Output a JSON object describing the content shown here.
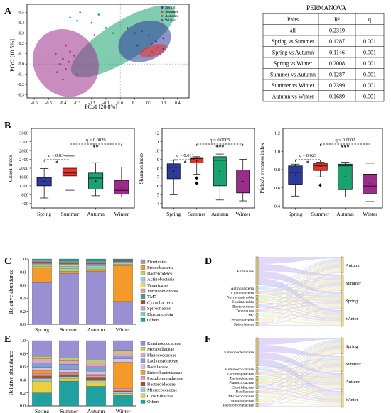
{
  "panels": {
    "A": "A",
    "B": "B",
    "C": "C",
    "D": "D",
    "E": "E",
    "F": "F"
  },
  "colors": {
    "Spring": "#2e3a9a",
    "Summer": "#e8332a",
    "Autumn": "#1aa36f",
    "Winter": "#9b2d8a"
  },
  "pcoa": {
    "xlabel": "PCo1 [20.8%]",
    "ylabel": "PCo2 [10.5%]",
    "xticks": [
      "-0.6",
      "-0.5",
      "-0.4",
      "-0.3",
      "-0.2",
      "-0.1",
      "0.0",
      "0.1",
      "0.2",
      "0.3",
      "0.4"
    ],
    "yticks": [
      "0.5",
      "0.4",
      "0.3",
      "0.2",
      "0.1",
      "0.0",
      "-0.1",
      "-0.2",
      "-0.3"
    ],
    "legend": [
      "Spring",
      "Summer",
      "Autumn",
      "Winter"
    ]
  },
  "permanova": {
    "title": "PERMANOVA",
    "headers": [
      "Pairs",
      "R²",
      "q"
    ],
    "rows": [
      [
        "all",
        "0.2319",
        "-"
      ],
      [
        "Spring vs Summer",
        "0.1287",
        "0.001"
      ],
      [
        "Spring vs Autumn",
        "0.1146",
        "0.001"
      ],
      [
        "Spring vs Winter",
        "0.2008",
        "0.001"
      ],
      [
        "Summer vs Autumn",
        "0.1287",
        "0.001"
      ],
      [
        "Summer vs Winter",
        "0.2399",
        "0.001"
      ],
      [
        "Autumn vs Winter",
        "0.1689",
        "0.001"
      ]
    ]
  },
  "chart_data": [
    {
      "type": "scatter",
      "xlabel": "PCo1 [20.8%]",
      "ylabel": "PCo2 [10.5%]",
      "xlim": [
        -0.65,
        0.48
      ],
      "ylim": [
        -0.33,
        0.58
      ],
      "series": [
        {
          "name": "Spring",
          "points": [
            [
              0.05,
              0.35
            ],
            [
              0.1,
              0.3
            ],
            [
              0.15,
              0.32
            ],
            [
              0.2,
              0.28
            ],
            [
              0.25,
              0.22
            ],
            [
              0.3,
              0.25
            ],
            [
              0.12,
              0.18
            ],
            [
              0.22,
              0.2
            ],
            [
              0.3,
              0.15
            ]
          ]
        },
        {
          "name": "Summer",
          "points": [
            [
              0.18,
              0.15
            ],
            [
              0.22,
              0.12
            ],
            [
              0.25,
              0.14
            ],
            [
              0.28,
              0.1
            ],
            [
              0.2,
              0.08
            ],
            [
              0.26,
              0.16
            ],
            [
              0.23,
              0.11
            ],
            [
              -0.18,
              0.28
            ]
          ]
        },
        {
          "name": "Autumn",
          "points": [
            [
              -0.35,
              0.45
            ],
            [
              -0.28,
              0.5
            ],
            [
              -0.2,
              0.4
            ],
            [
              -0.15,
              0.48
            ],
            [
              -0.05,
              0.3
            ],
            [
              0.0,
              0.2
            ],
            [
              0.08,
              0.15
            ],
            [
              -0.3,
              0.42
            ],
            [
              0.15,
              0.18
            ],
            [
              -0.1,
              0.35
            ]
          ]
        },
        {
          "name": "Winter",
          "points": [
            [
              -0.45,
              0.1
            ],
            [
              -0.4,
              0.05
            ],
            [
              -0.38,
              -0.05
            ],
            [
              -0.42,
              0.0
            ],
            [
              -0.35,
              0.12
            ],
            [
              -0.3,
              -0.1
            ],
            [
              -0.36,
              0.02
            ],
            [
              -0.44,
              -0.08
            ],
            [
              -0.32,
              0.08
            ],
            [
              -0.4,
              -0.15
            ],
            [
              -0.38,
              0.18
            ]
          ]
        }
      ]
    },
    {
      "type": "box",
      "ylabel": "Chao1 index",
      "yticks": [
        "400",
        "800",
        "1200",
        "1600",
        "2000",
        "2400",
        "2800",
        "3200",
        "3600"
      ],
      "ylim": [
        200,
        3800
      ],
      "categories": [
        "Spring",
        "Summer",
        "Autumn",
        "Winter"
      ],
      "boxes": [
        {
          "min": 650,
          "q1": 1200,
          "median": 1380,
          "q3": 1580,
          "max": 1980
        },
        {
          "min": 1000,
          "q1": 1650,
          "median": 1780,
          "q3": 2000,
          "max": 2550
        },
        {
          "min": 750,
          "q1": 1050,
          "median": 1550,
          "q3": 1780,
          "max": 2250
        },
        {
          "min": 700,
          "q1": 820,
          "median": 1000,
          "q3": 1450,
          "max": 2050
        }
      ],
      "outliers": [],
      "brackets": [
        {
          "from": 0,
          "to": 1,
          "q": "q = 0.034",
          "sig": "*",
          "level": 0
        },
        {
          "from": 1,
          "to": 3,
          "q": "q = 0.0029",
          "sig": "**",
          "level": 1
        }
      ]
    },
    {
      "type": "box",
      "ylabel": "Shannon index",
      "yticks": [
        "4",
        "5",
        "6",
        "7",
        "8",
        "9",
        "10",
        "11",
        "12"
      ],
      "ylim": [
        3.5,
        12.5
      ],
      "categories": [
        "Spring",
        "Summer",
        "Autumn",
        "Winter"
      ],
      "boxes": [
        {
          "min": 5.0,
          "q1": 6.8,
          "median": 8.1,
          "q3": 8.5,
          "max": 8.9
        },
        {
          "min": 7.3,
          "q1": 8.6,
          "median": 9.1,
          "q3": 9.2,
          "max": 9.3
        },
        {
          "min": 4.4,
          "q1": 6.0,
          "median": 8.9,
          "q3": 9.3,
          "max": 9.6
        },
        {
          "min": 4.3,
          "q1": 5.2,
          "median": 6.1,
          "q3": 7.8,
          "max": 9.0
        }
      ],
      "outliers": [
        [
          1,
          6.3
        ],
        [
          1,
          6.9
        ]
      ],
      "brackets": [
        {
          "from": 0,
          "to": 1,
          "q": "q = 0.011",
          "sig": "*",
          "level": 0
        },
        {
          "from": 1,
          "to": 3,
          "q": "q = 0.0005",
          "sig": "***",
          "level": 1
        }
      ]
    },
    {
      "type": "box",
      "ylabel": "Pielou's evenness index",
      "yticks": [
        "0.4",
        "0.6",
        "0.8",
        "1.0",
        "1.2"
      ],
      "ylim": [
        0.38,
        1.25
      ],
      "categories": [
        "Spring",
        "Summer",
        "Autumn",
        "Winter"
      ],
      "boxes": [
        {
          "min": 0.51,
          "q1": 0.64,
          "median": 0.77,
          "q3": 0.84,
          "max": 0.86
        },
        {
          "min": 0.72,
          "q1": 0.79,
          "median": 0.84,
          "q3": 0.87,
          "max": 0.88
        },
        {
          "min": 0.5,
          "q1": 0.58,
          "median": 0.84,
          "q3": 0.86,
          "max": 0.88
        },
        {
          "min": 0.45,
          "q1": 0.54,
          "median": 0.62,
          "q3": 0.75,
          "max": 0.87
        }
      ],
      "outliers": [
        [
          1,
          0.63
        ]
      ],
      "brackets": [
        {
          "from": 0,
          "to": 1,
          "q": "q = 0.025",
          "sig": "*",
          "level": 0
        },
        {
          "from": 1,
          "to": 3,
          "q": "q = 0.0002",
          "sig": "***",
          "level": 1
        }
      ]
    },
    {
      "type": "bar",
      "stacked": true,
      "ylabel": "Relative abundance",
      "yticks": [
        "0.0",
        "0.2",
        "0.4",
        "0.6",
        "0.8",
        "1.0"
      ],
      "ylim": [
        0,
        1
      ],
      "categories": [
        "Spring",
        "Summer",
        "Autumn",
        "Winter"
      ],
      "series": [
        {
          "name": "Firmicutes",
          "color": "#9b8fd4",
          "values": [
            0.64,
            0.78,
            0.81,
            0.35
          ]
        },
        {
          "name": "Proteobacteria",
          "color": "#f59a2a",
          "values": [
            0.22,
            0.03,
            0.03,
            0.55
          ]
        },
        {
          "name": "Bacteroidetes",
          "color": "#b5d45a",
          "values": [
            0.03,
            0.04,
            0.03,
            0.02
          ]
        },
        {
          "name": "Actinobacteria",
          "color": "#8fd0e8",
          "values": [
            0.02,
            0.04,
            0.03,
            0.02
          ]
        },
        {
          "name": "Tenericutes",
          "color": "#e8d85a",
          "values": [
            0.01,
            0.02,
            0.01,
            0.01
          ]
        },
        {
          "name": "Verrucomicrobia",
          "color": "#e89ab5",
          "values": [
            0.01,
            0.01,
            0.01,
            0.01
          ]
        },
        {
          "name": "TM7",
          "color": "#4b9a8a",
          "values": [
            0.01,
            0.01,
            0.01,
            0.01
          ]
        },
        {
          "name": "Cyanobacteria",
          "color": "#a0522d",
          "values": [
            0.02,
            0.02,
            0.02,
            0.01
          ]
        },
        {
          "name": "Spirochaetes",
          "color": "#c8a0d8",
          "values": [
            0.01,
            0.01,
            0.01,
            0.01
          ]
        },
        {
          "name": "Elusimicrobia",
          "color": "#7ed0a0",
          "values": [
            0.01,
            0.01,
            0.01,
            0.0
          ]
        },
        {
          "name": "Others",
          "color": "#20a0a0",
          "values": [
            0.02,
            0.03,
            0.03,
            0.01
          ]
        }
      ]
    },
    {
      "type": "sankey",
      "left": [
        "Firmicutes",
        "Actinobacteria",
        "Cyanobacteria",
        "Verrucomicrobia",
        "Elusimicrobia",
        "Bacteroidetes",
        "Tenericutes",
        "TM7",
        "Proteobacteria",
        "Spirochaetes"
      ],
      "right": [
        "Autumn",
        "Summer",
        "Spring",
        "Winter"
      ]
    },
    {
      "type": "bar",
      "stacked": true,
      "ylabel": "Relative abundance",
      "yticks": [
        "0.0",
        "0.2",
        "0.4",
        "0.6",
        "0.8",
        "1.0"
      ],
      "ylim": [
        0,
        1
      ],
      "categories": [
        "Spring",
        "Summer",
        "Autumn",
        "Winter"
      ],
      "series": [
        {
          "name": "Others",
          "color": "#20a0a0",
          "values": [
            0.2,
            0.38,
            0.3,
            0.16
          ]
        },
        {
          "name": "Clostridiaceae",
          "color": "#e8d040",
          "values": [
            0.18,
            0.04,
            0.06,
            0.03
          ]
        },
        {
          "name": "Micrococcaceae",
          "color": "#8fd0e8",
          "values": [
            0.04,
            0.03,
            0.03,
            0.02
          ]
        },
        {
          "name": "Bacteroidaceae",
          "color": "#a0522d",
          "values": [
            0.04,
            0.03,
            0.05,
            0.02
          ]
        },
        {
          "name": "Pseudomonadaceae",
          "color": "#e89ab5",
          "values": [
            0.03,
            0.02,
            0.02,
            0.04
          ]
        },
        {
          "name": "Enterobacteriaceae",
          "color": "#f59a2a",
          "values": [
            0.05,
            0.02,
            0.02,
            0.4
          ]
        },
        {
          "name": "Bacillaceae",
          "color": "#d8c0e8",
          "values": [
            0.05,
            0.04,
            0.05,
            0.05
          ]
        },
        {
          "name": "Lachnospiraceae",
          "color": "#7ea0d8",
          "values": [
            0.07,
            0.08,
            0.07,
            0.05
          ]
        },
        {
          "name": "Planococcaceae",
          "color": "#e8a0c0",
          "values": [
            0.06,
            0.05,
            0.06,
            0.04
          ]
        },
        {
          "name": "Moraxellaceae",
          "color": "#b5d45a",
          "values": [
            0.04,
            0.04,
            0.04,
            0.04
          ]
        },
        {
          "name": "Ruminococcaceae",
          "color": "#9b8fd4",
          "values": [
            0.24,
            0.27,
            0.3,
            0.15
          ]
        }
      ],
      "legend_order": [
        "Ruminococcaceae",
        "Moraxellaceae",
        "Planococcaceae",
        "Lachnospiraceae",
        "Bacillaceae",
        "Enterobacteriaceae",
        "Pseudomonadaceae",
        "Bacteroidaceae",
        "Micrococcaceae",
        "Clostridiaceae",
        "Others"
      ]
    },
    {
      "type": "sankey",
      "left": [
        "Enterobacteriaceae",
        "Ruminococcaceae",
        "Lachnospiraceae",
        "Bacteroidaceae",
        "Planococcaceae",
        "Clostridiaceae",
        "Bacillaceae",
        "Micrococcaceae",
        "Moraxellaceae",
        "Pseudomonadaceae"
      ],
      "right": [
        "Spring",
        "Summer",
        "Autumn",
        "Winter"
      ]
    }
  ]
}
